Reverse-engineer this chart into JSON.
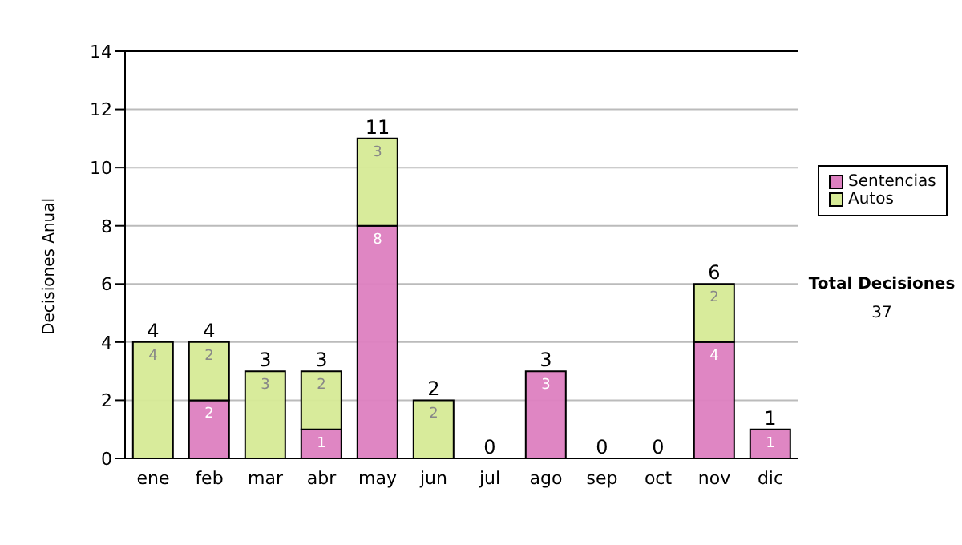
{
  "chart_data": {
    "type": "bar",
    "ylabel": "Decisiones Anual",
    "categories": [
      "ene",
      "feb",
      "mar",
      "abr",
      "may",
      "jun",
      "jul",
      "ago",
      "sep",
      "oct",
      "nov",
      "dic"
    ],
    "stacked": true,
    "series": [
      {
        "name": "Sentencias",
        "color": "#dd80c0",
        "values": [
          0,
          2,
          0,
          1,
          8,
          0,
          0,
          3,
          0,
          0,
          4,
          1
        ],
        "value_labels": [
          null,
          "2",
          null,
          "1",
          "8",
          null,
          null,
          "3",
          null,
          null,
          "4",
          "1"
        ]
      },
      {
        "name": "Autos",
        "color": "#d6ea96",
        "values": [
          4,
          2,
          3,
          2,
          3,
          2,
          0,
          0,
          0,
          0,
          2,
          0
        ],
        "value_labels": [
          "4",
          "2",
          "3",
          "2",
          "3",
          "2",
          null,
          null,
          null,
          null,
          "2",
          null
        ]
      }
    ],
    "totals": [
      "4",
      "4",
      "3",
      "3",
      "11",
      "2",
      "0",
      "3",
      "0",
      "0",
      "6",
      "1"
    ],
    "ylim": [
      0,
      14
    ],
    "yticks": [
      0,
      2,
      4,
      6,
      8,
      10,
      12,
      14
    ],
    "grid": "y",
    "legend": "right",
    "annotations": [
      "Total Decisiones",
      "37"
    ]
  }
}
